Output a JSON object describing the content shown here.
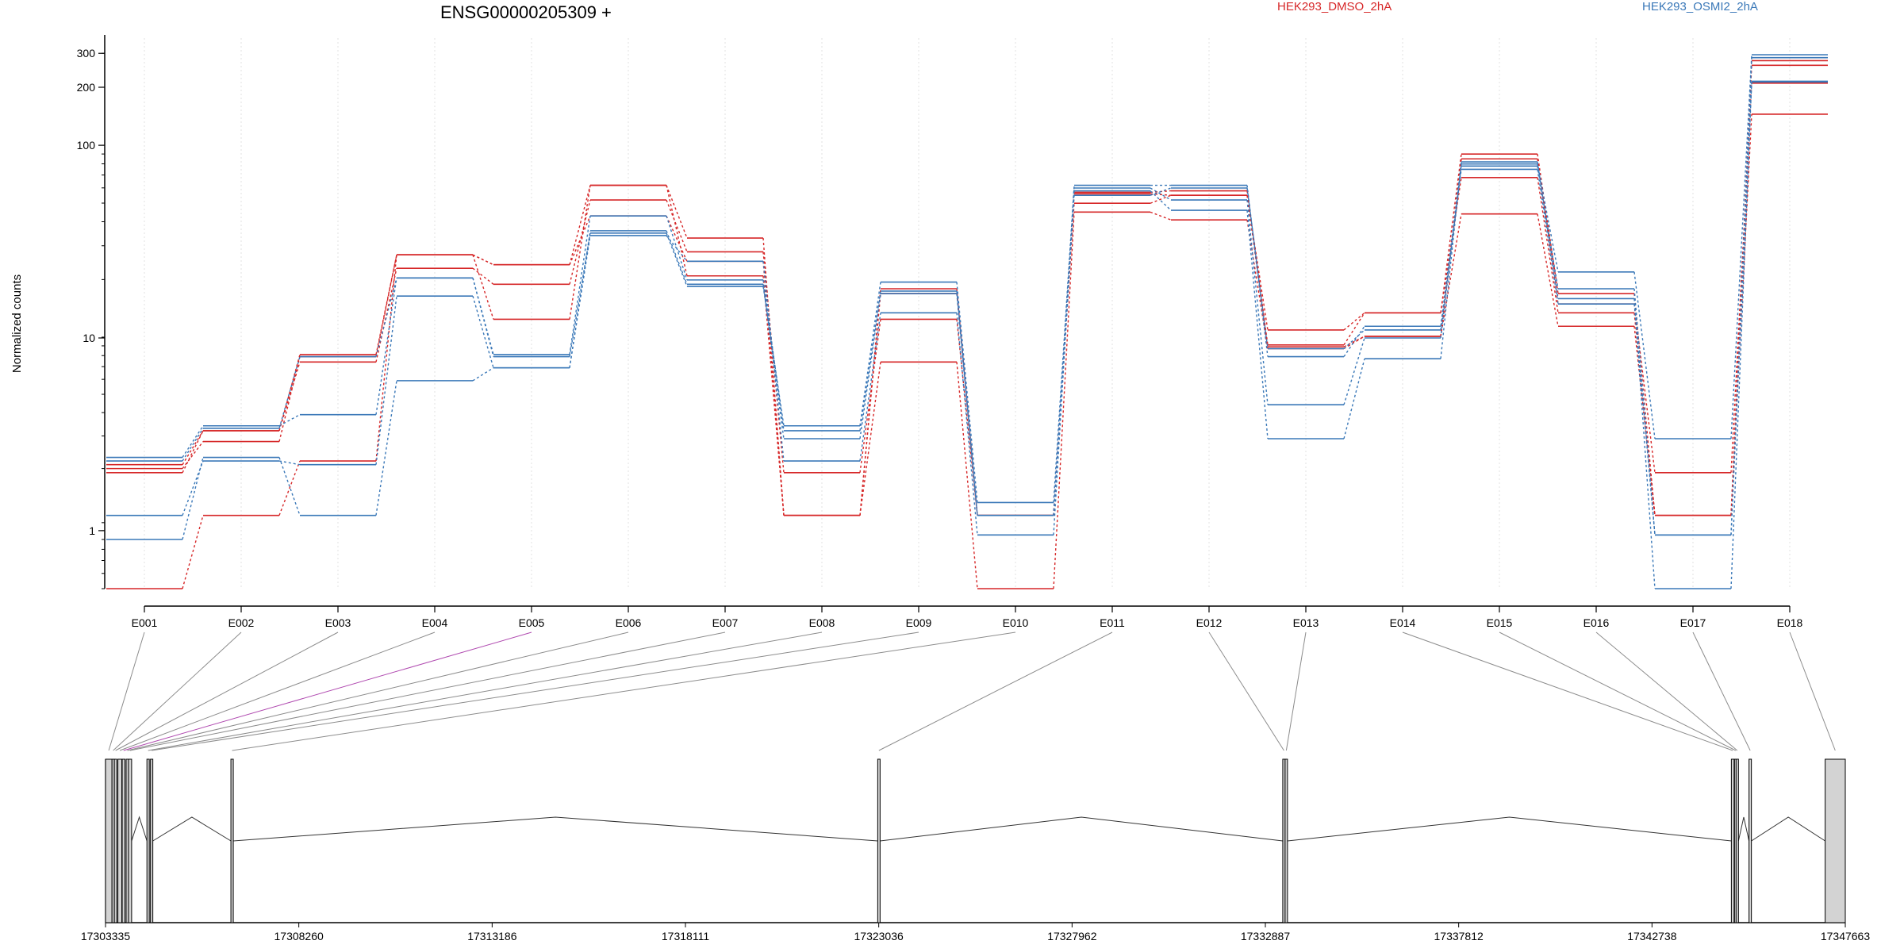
{
  "chart_data": {
    "type": "line",
    "title": "ENSG00000205309 +",
    "ylabel": "Normalized counts",
    "xlabel": "",
    "y_scale": "log",
    "ylim": [
      0.5,
      360
    ],
    "y_ticks": [
      1,
      10,
      100,
      200,
      300
    ],
    "y_tick_labels": [
      "1",
      "10",
      "100",
      "200",
      "300"
    ],
    "grid": "vertical-dotted",
    "legend_placement": "top",
    "colors": {
      "HEK293_DMSO_2hA": "#d62728",
      "HEK293_OSMI2_2hA": "#3a78b8",
      "axis": "#000000",
      "connector": "#8c8c8c",
      "highlight_connector": "#b04ab0",
      "exon_fill": "#d3d3d3"
    },
    "categories": [
      "E001",
      "E002",
      "E003",
      "E004",
      "E005",
      "E006",
      "E007",
      "E008",
      "E009",
      "E010",
      "E011",
      "E012",
      "E013",
      "E014",
      "E015",
      "E016",
      "E017",
      "E018"
    ],
    "legend": [
      {
        "label": "HEK293_DMSO_2hA",
        "color": "#d62728"
      },
      {
        "label": "HEK293_OSMI2_2hA",
        "color": "#3a78b8"
      }
    ],
    "series": [
      {
        "group": "HEK293_DMSO_2hA",
        "color": "#d62728",
        "values": [
          2.2,
          3.3,
          8.2,
          27,
          24,
          62,
          33,
          1.2,
          18,
          1.2,
          57,
          58,
          9.2,
          13.5,
          90,
          17,
          1.2,
          275
        ]
      },
      {
        "group": "HEK293_DMSO_2hA",
        "color": "#d62728",
        "values": [
          2.0,
          3.3,
          7.5,
          23,
          19,
          52,
          28,
          2.0,
          12.5,
          1.2,
          50,
          55,
          9.0,
          10.2,
          85,
          15,
          2.0,
          210
        ]
      },
      {
        "group": "HEK293_DMSO_2hA",
        "color": "#d62728",
        "values": [
          0.5,
          1.2,
          2.3,
          27,
          12.5,
          62,
          21,
          1.2,
          7.5,
          0.5,
          45,
          41,
          8.8,
          10.2,
          44,
          11.5,
          1.2,
          145
        ]
      },
      {
        "group": "HEK293_DMSO_2hA",
        "color": "#d62728",
        "values": [
          2.1,
          2.9,
          8.0,
          27,
          24,
          43,
          25,
          1.2,
          17,
          1.2,
          56,
          55,
          11,
          13.5,
          68,
          13.5,
          1.2,
          260
        ]
      },
      {
        "group": "HEK293_OSMI2_2hA",
        "color": "#3a78b8",
        "values": [
          2.4,
          3.5,
          4.0,
          20.5,
          8.0,
          35,
          18.5,
          3.5,
          19.5,
          1.4,
          62,
          62,
          8.0,
          11.5,
          80,
          22,
          3.0,
          295
        ]
      },
      {
        "group": "HEK293_OSMI2_2hA",
        "color": "#3a78b8",
        "values": [
          1.2,
          2.3,
          2.2,
          16.5,
          7.0,
          36,
          19,
          3.0,
          17,
          1.2,
          60,
          52,
          4.5,
          10,
          78,
          18,
          0.95,
          285
        ]
      },
      {
        "group": "HEK293_OSMI2_2hA",
        "color": "#3a78b8",
        "values": [
          0.9,
          2.4,
          1.2,
          6.0,
          7.0,
          34,
          25,
          2.3,
          13.5,
          0.95,
          58,
          46,
          3.0,
          7.8,
          82,
          16,
          0.5,
          215
        ]
      },
      {
        "group": "HEK293_OSMI2_2hA",
        "color": "#3a78b8",
        "values": [
          2.3,
          3.4,
          8.0,
          20.5,
          8.2,
          43,
          20,
          3.3,
          17.5,
          1.2,
          55,
          60,
          8.8,
          11,
          75,
          15,
          0.95,
          213
        ]
      }
    ],
    "genomic": {
      "tick_labels": [
        "17303335",
        "17308260",
        "17313186",
        "17318111",
        "17323036",
        "17327962",
        "17332887",
        "17337812",
        "17342738",
        "17347663"
      ],
      "tick_values": [
        17303335,
        17308260,
        17313186,
        17318111,
        17323036,
        17327962,
        17332887,
        17337812,
        17342738,
        17347663
      ],
      "range": [
        17303335,
        17347663
      ],
      "highlighted_exon": "E005",
      "exons": [
        {
          "name": "E001",
          "start": 17303335,
          "end": 17303500
        },
        {
          "name": "E002",
          "start": 17303500,
          "end": 17303560
        },
        {
          "name": "E003",
          "start": 17303560,
          "end": 17303620
        },
        {
          "name": "E004",
          "start": 17303650,
          "end": 17303750
        },
        {
          "name": "E005",
          "start": 17303760,
          "end": 17303830
        },
        {
          "name": "E006",
          "start": 17303860,
          "end": 17303900
        },
        {
          "name": "E007",
          "start": 17303920,
          "end": 17304000
        },
        {
          "name": "E008",
          "start": 17304390,
          "end": 17304450
        },
        {
          "name": "E009",
          "start": 17304480,
          "end": 17304520
        },
        {
          "name": "E010",
          "start": 17306530,
          "end": 17306580
        },
        {
          "name": "E011",
          "start": 17323010,
          "end": 17323060
        },
        {
          "name": "E012",
          "start": 17333330,
          "end": 17333380
        },
        {
          "name": "E013",
          "start": 17333390,
          "end": 17333430
        },
        {
          "name": "E014",
          "start": 17344760,
          "end": 17344830
        },
        {
          "name": "E015",
          "start": 17344840,
          "end": 17344880
        },
        {
          "name": "E016",
          "start": 17344880,
          "end": 17344920
        },
        {
          "name": "E017",
          "start": 17345210,
          "end": 17345260
        },
        {
          "name": "E018",
          "start": 17347150,
          "end": 17348050
        }
      ]
    }
  }
}
